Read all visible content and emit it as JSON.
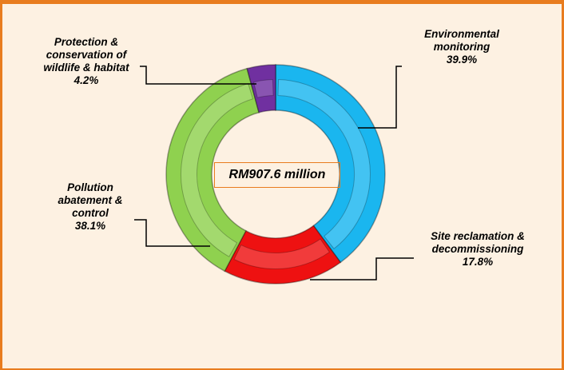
{
  "chart_data": {
    "type": "donut",
    "center_label": "RM907.6 million",
    "categories": [
      "Environmental monitoring",
      "Site reclamation & decommissioning",
      "Pollution abatement & control",
      "Protection & conservation of wildlife & habitat"
    ],
    "values": [
      39.9,
      17.8,
      38.1,
      4.2
    ],
    "value_labels": [
      "39.9%",
      "17.8%",
      "38.1%",
      "4.2%"
    ],
    "colors": [
      "#1ab6ef",
      "#ee1111",
      "#8fd14f",
      "#7030a0"
    ]
  }
}
